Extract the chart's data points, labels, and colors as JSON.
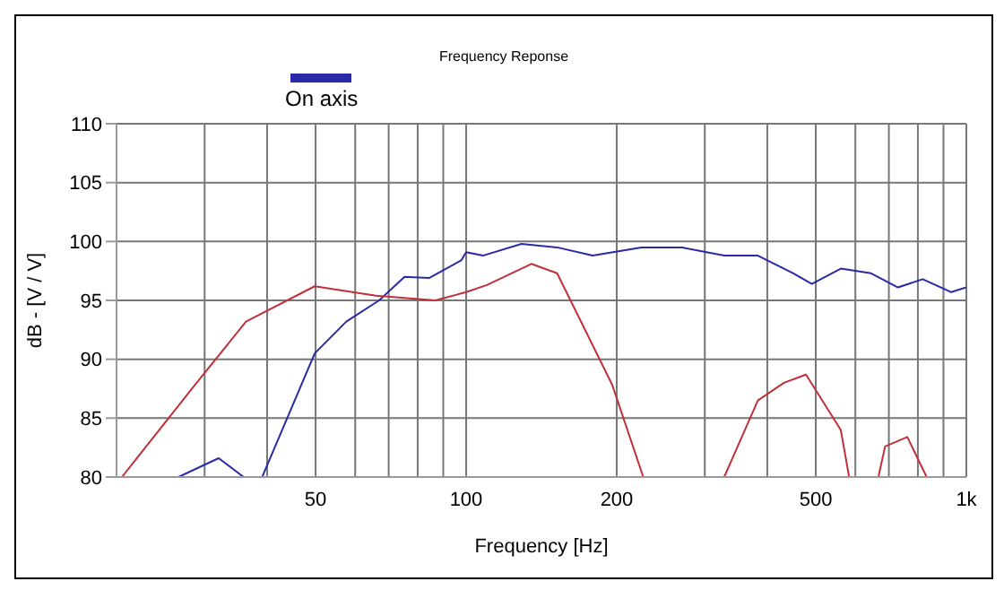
{
  "chart_data": {
    "type": "line",
    "title": "Frequency Reponse",
    "xlabel": "Frequency [Hz]",
    "ylabel": "dB - [V / V]",
    "log": "x",
    "grid": true,
    "legend": "top",
    "marker": "none",
    "line_style": "solid",
    "xlim": [
      20,
      1000
    ],
    "xticks": [
      {
        "value": 30,
        "label": null
      },
      {
        "value": 40,
        "label": null
      },
      50,
      {
        "value": 60,
        "label": null
      },
      {
        "value": 70,
        "label": null
      },
      {
        "value": 80,
        "label": null
      },
      {
        "value": 90,
        "label": null
      },
      100,
      200,
      {
        "value": 300,
        "label": null
      },
      {
        "value": 400,
        "label": null
      },
      500,
      {
        "value": 600,
        "label": null
      },
      {
        "value": 700,
        "label": null
      },
      {
        "value": 800,
        "label": null
      },
      {
        "value": 900,
        "label": null
      },
      {
        "value": 1000,
        "label": "1k"
      }
    ],
    "ylim": [
      80,
      110
    ],
    "yticks": [
      80,
      85,
      90,
      95,
      100,
      105,
      110
    ],
    "series": [
      {
        "name": "On axis",
        "color": "#2a2aa8",
        "x": [
          26.6,
          32,
          35.9,
          37.5,
          39.1,
          49.8,
          57.6,
          67,
          75.3,
          84.3,
          97.8,
          100,
          108,
          129,
          152,
          179,
          224,
          270,
          328,
          383,
          451,
          491,
          561,
          645,
          730,
          818,
          933,
          1000
        ],
        "values": [
          80,
          81.6,
          80,
          null,
          80,
          90.5,
          93.2,
          95,
          97,
          96.9,
          98.4,
          99.1,
          98.8,
          99.8,
          99.5,
          98.8,
          99.5,
          99.5,
          98.8,
          98.8,
          97.3,
          96.4,
          97.7,
          97.3,
          96.1,
          96.8,
          95.7,
          96.1
        ]
      },
      {
        "color": "#c0303a",
        "x": [
          20.5,
          28.8,
          36.3,
          49.8,
          66,
          86.7,
          100,
          110,
          135,
          152,
          196,
          226,
          280,
          328,
          383,
          432,
          478,
          561,
          583,
          620,
          667,
          688,
          762,
          833
        ],
        "values": [
          80,
          87.9,
          93.2,
          96.2,
          95.4,
          95,
          95.7,
          96.3,
          98.1,
          97.3,
          87.8,
          80,
          null,
          80,
          86.5,
          88,
          88.7,
          84,
          80,
          null,
          80,
          82.6,
          83.4,
          80
        ]
      }
    ]
  }
}
